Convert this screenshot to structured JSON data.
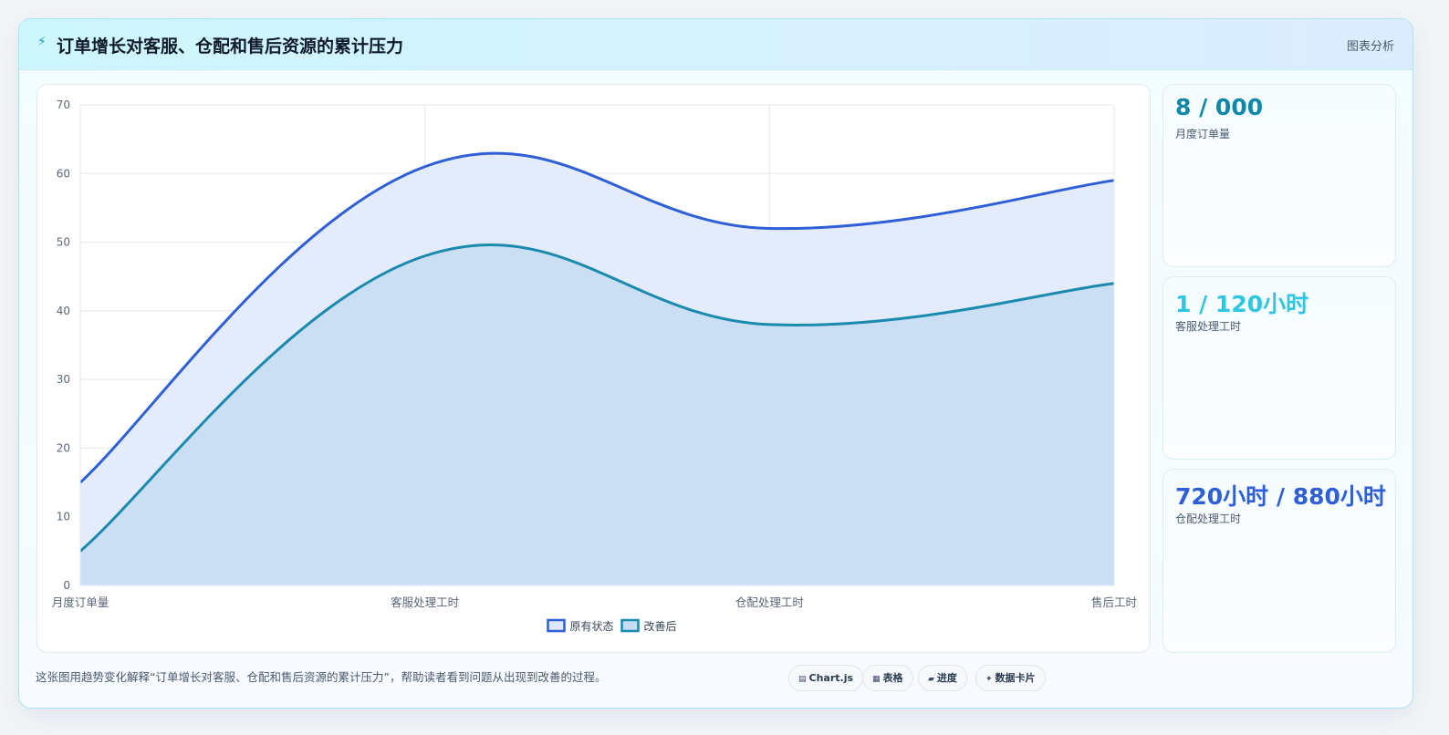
{
  "header": {
    "icon": "bolt-icon",
    "title": "订单增长对客服、仓配和售后资源的累计压力",
    "tag": "图表分析"
  },
  "kpis": [
    {
      "value": "8 / 000",
      "label": "月度订单量",
      "color": "#0e88a8"
    },
    {
      "value": "1 / 120小时",
      "label": "客服处理工时",
      "color": "#2ec6e0"
    },
    {
      "value": "720小时 / 880小时",
      "label": "仓配处理工时",
      "color": "#2f5fd6"
    }
  ],
  "footer": {
    "description": "这张图用趋势变化解释“订单增长对客服、仓配和售后资源的累计压力”，帮助读者看到问题从出现到改善的过程。",
    "chips": [
      {
        "icon": "chart-icon",
        "glyph": "▤",
        "label": "Chart.js"
      },
      {
        "icon": "table-icon",
        "glyph": "▦",
        "label": "表格"
      },
      {
        "icon": "progress-icon",
        "glyph": "▰",
        "label": "进度"
      },
      {
        "icon": "sparkle-icon",
        "glyph": "✦",
        "label": "数据卡片"
      }
    ]
  },
  "chart_data": {
    "type": "area",
    "categories": [
      "月度订单量",
      "客服处理工时",
      "仓配处理工时",
      "售后工时"
    ],
    "series": [
      {
        "name": "原有状态",
        "values": [
          15,
          61,
          52,
          59
        ],
        "color": "#2f5fd6",
        "fill": "#dfe9fb"
      },
      {
        "name": "改善后",
        "values": [
          5,
          48,
          38,
          44
        ],
        "color": "#1a8aad",
        "fill": "#c5dcf2"
      }
    ],
    "ylim": [
      0,
      70
    ],
    "yticks": [
      0,
      10,
      20,
      30,
      40,
      50,
      60,
      70
    ],
    "grid": true,
    "legend": "bottom",
    "title": "",
    "xlabel": "",
    "ylabel": ""
  }
}
